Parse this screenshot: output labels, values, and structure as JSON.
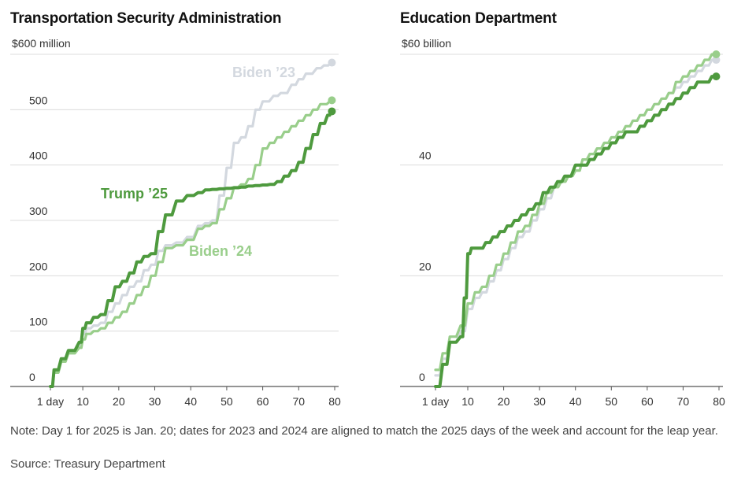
{
  "chart_data": [
    {
      "type": "line",
      "title": "Transportation Security Administration",
      "y_unit_label": "$600 million",
      "yticks": [
        0,
        100,
        200,
        300,
        400,
        500
      ],
      "ylim": [
        0,
        600
      ],
      "xlim": [
        1,
        80
      ],
      "xticks": [
        1,
        10,
        20,
        30,
        40,
        50,
        60,
        70,
        80
      ],
      "xtick_labels": [
        "1 day",
        "10",
        "20",
        "30",
        "40",
        "50",
        "60",
        "70",
        "80"
      ],
      "grid": true,
      "series": [
        {
          "name": "Biden ’23",
          "color": "#d3d8df",
          "points": [
            [
              1,
              0
            ],
            [
              2,
              25
            ],
            [
              4,
              45
            ],
            [
              6,
              60
            ],
            [
              9,
              75
            ],
            [
              10,
              95
            ],
            [
              11,
              105
            ],
            [
              13,
              110
            ],
            [
              15,
              115
            ],
            [
              17,
              135
            ],
            [
              19,
              150
            ],
            [
              21,
              165
            ],
            [
              23,
              180
            ],
            [
              25,
              190
            ],
            [
              27,
              210
            ],
            [
              29,
              220
            ],
            [
              31,
              245
            ],
            [
              33,
              255
            ],
            [
              36,
              260
            ],
            [
              39,
              270
            ],
            [
              42,
              290
            ],
            [
              44,
              295
            ],
            [
              46,
              300
            ],
            [
              48,
              345
            ],
            [
              50,
              395
            ],
            [
              52,
              440
            ],
            [
              54,
              450
            ],
            [
              56,
              470
            ],
            [
              58,
              500
            ],
            [
              60,
              515
            ],
            [
              63,
              525
            ],
            [
              65,
              530
            ],
            [
              68,
              545
            ],
            [
              70,
              555
            ],
            [
              72,
              565
            ],
            [
              75,
              575
            ],
            [
              77,
              580
            ],
            [
              79,
              585
            ]
          ]
        },
        {
          "name": "Biden ’24",
          "color": "#99ce8b",
          "points": [
            [
              1,
              0
            ],
            [
              2,
              25
            ],
            [
              4,
              45
            ],
            [
              6,
              60
            ],
            [
              9,
              70
            ],
            [
              10,
              85
            ],
            [
              11,
              95
            ],
            [
              13,
              100
            ],
            [
              15,
              105
            ],
            [
              17,
              115
            ],
            [
              19,
              125
            ],
            [
              21,
              135
            ],
            [
              23,
              150
            ],
            [
              25,
              165
            ],
            [
              27,
              180
            ],
            [
              29,
              200
            ],
            [
              31,
              225
            ],
            [
              33,
              250
            ],
            [
              36,
              255
            ],
            [
              39,
              265
            ],
            [
              42,
              285
            ],
            [
              44,
              290
            ],
            [
              46,
              295
            ],
            [
              48,
              320
            ],
            [
              50,
              340
            ],
            [
              52,
              360
            ],
            [
              54,
              365
            ],
            [
              56,
              375
            ],
            [
              58,
              400
            ],
            [
              60,
              430
            ],
            [
              62,
              440
            ],
            [
              64,
              450
            ],
            [
              66,
              460
            ],
            [
              68,
              470
            ],
            [
              70,
              480
            ],
            [
              72,
              490
            ],
            [
              74,
              500
            ],
            [
              76,
              510
            ],
            [
              79,
              517
            ]
          ]
        },
        {
          "name": "Trump ’25",
          "color": "#4e9a3e",
          "points": [
            [
              1,
              0
            ],
            [
              2,
              30
            ],
            [
              4,
              50
            ],
            [
              6,
              65
            ],
            [
              9,
              80
            ],
            [
              10,
              105
            ],
            [
              11,
              115
            ],
            [
              13,
              125
            ],
            [
              15,
              130
            ],
            [
              17,
              155
            ],
            [
              19,
              180
            ],
            [
              21,
              190
            ],
            [
              23,
              205
            ],
            [
              25,
              225
            ],
            [
              27,
              235
            ],
            [
              29,
              240
            ],
            [
              31,
              280
            ],
            [
              33,
              310
            ],
            [
              36,
              335
            ],
            [
              39,
              345
            ],
            [
              42,
              350
            ],
            [
              44,
              355
            ],
            [
              46,
              356
            ],
            [
              48,
              357
            ],
            [
              50,
              358
            ],
            [
              52,
              359
            ],
            [
              54,
              360
            ],
            [
              56,
              362
            ],
            [
              58,
              363
            ],
            [
              60,
              364
            ],
            [
              62,
              365
            ],
            [
              64,
              370
            ],
            [
              66,
              380
            ],
            [
              68,
              390
            ],
            [
              70,
              405
            ],
            [
              72,
              430
            ],
            [
              74,
              455
            ],
            [
              76,
              475
            ],
            [
              78,
              490
            ],
            [
              79,
              497
            ]
          ]
        }
      ],
      "annotations": [
        "Biden ’23",
        "Trump ’25",
        "Biden ’24"
      ]
    },
    {
      "type": "line",
      "title": "Education Department",
      "y_unit_label": "$60 billion",
      "yticks": [
        0,
        20,
        40
      ],
      "ylim": [
        0,
        60
      ],
      "xlim": [
        1,
        80
      ],
      "xticks": [
        1,
        10,
        20,
        30,
        40,
        50,
        60,
        70,
        80
      ],
      "xtick_labels": [
        "1 day",
        "10",
        "20",
        "30",
        "40",
        "50",
        "60",
        "70",
        "80"
      ],
      "grid": true,
      "series": [
        {
          "name": "Biden ’23",
          "color": "#d3d8df",
          "points": [
            [
              1,
              2
            ],
            [
              3,
              5
            ],
            [
              5,
              8
            ],
            [
              8,
              10
            ],
            [
              10,
              14
            ],
            [
              12,
              16
            ],
            [
              14,
              17
            ],
            [
              16,
              19
            ],
            [
              18,
              21
            ],
            [
              20,
              23
            ],
            [
              22,
              25
            ],
            [
              24,
              27
            ],
            [
              26,
              28
            ],
            [
              28,
              30
            ],
            [
              30,
              32
            ],
            [
              32,
              34
            ],
            [
              34,
              36
            ],
            [
              36,
              37
            ],
            [
              38,
              38
            ],
            [
              40,
              39
            ],
            [
              42,
              41
            ],
            [
              44,
              42
            ],
            [
              46,
              43
            ],
            [
              48,
              44
            ],
            [
              50,
              45
            ],
            [
              52,
              46
            ],
            [
              54,
              47
            ],
            [
              56,
              48
            ],
            [
              58,
              49
            ],
            [
              60,
              50
            ],
            [
              62,
              51
            ],
            [
              64,
              52
            ],
            [
              66,
              53
            ],
            [
              68,
              54
            ],
            [
              70,
              55
            ],
            [
              72,
              56
            ],
            [
              74,
              57
            ],
            [
              76,
              58
            ],
            [
              78,
              59
            ],
            [
              79,
              59
            ]
          ]
        },
        {
          "name": "Biden ’24",
          "color": "#99ce8b",
          "points": [
            [
              1,
              3
            ],
            [
              3,
              6
            ],
            [
              5,
              9
            ],
            [
              8,
              11
            ],
            [
              10,
              15
            ],
            [
              12,
              17
            ],
            [
              14,
              18
            ],
            [
              16,
              20
            ],
            [
              18,
              22
            ],
            [
              20,
              24
            ],
            [
              22,
              26
            ],
            [
              24,
              28
            ],
            [
              26,
              29
            ],
            [
              28,
              31
            ],
            [
              30,
              33
            ],
            [
              32,
              35
            ],
            [
              34,
              36
            ],
            [
              36,
              37
            ],
            [
              38,
              38
            ],
            [
              40,
              39
            ],
            [
              42,
              41
            ],
            [
              44,
              42
            ],
            [
              46,
              43
            ],
            [
              48,
              44
            ],
            [
              50,
              45
            ],
            [
              52,
              46
            ],
            [
              54,
              47
            ],
            [
              56,
              48
            ],
            [
              58,
              49
            ],
            [
              60,
              50
            ],
            [
              62,
              51
            ],
            [
              64,
              52
            ],
            [
              66,
              53
            ],
            [
              68,
              55
            ],
            [
              70,
              56
            ],
            [
              72,
              57
            ],
            [
              74,
              58
            ],
            [
              76,
              59
            ],
            [
              78,
              60
            ],
            [
              79,
              60
            ]
          ]
        },
        {
          "name": "Trump ’25",
          "color": "#4e9a3e",
          "points": [
            [
              1,
              0
            ],
            [
              3,
              4
            ],
            [
              5,
              8
            ],
            [
              8,
              9
            ],
            [
              9,
              16
            ],
            [
              10,
              24
            ],
            [
              11,
              25
            ],
            [
              13,
              25
            ],
            [
              15,
              26
            ],
            [
              17,
              27
            ],
            [
              19,
              28
            ],
            [
              21,
              29
            ],
            [
              23,
              30
            ],
            [
              25,
              31
            ],
            [
              27,
              32
            ],
            [
              29,
              33
            ],
            [
              31,
              35
            ],
            [
              33,
              36
            ],
            [
              35,
              37
            ],
            [
              37,
              38
            ],
            [
              40,
              40
            ],
            [
              42,
              40
            ],
            [
              44,
              41
            ],
            [
              46,
              42
            ],
            [
              48,
              43
            ],
            [
              50,
              44
            ],
            [
              52,
              45
            ],
            [
              54,
              46
            ],
            [
              56,
              46
            ],
            [
              58,
              47
            ],
            [
              60,
              48
            ],
            [
              62,
              49
            ],
            [
              64,
              50
            ],
            [
              66,
              51
            ],
            [
              68,
              52
            ],
            [
              70,
              53
            ],
            [
              72,
              54
            ],
            [
              74,
              55
            ],
            [
              76,
              55
            ],
            [
              78,
              56
            ],
            [
              79,
              56
            ]
          ]
        }
      ],
      "annotations": []
    }
  ],
  "footer": {
    "note": "Note: Day 1 for 2025 is Jan. 20; dates for 2023 and 2024 are aligned to match the 2025 days of the week and account for the leap year.",
    "source": "Source: Treasury Department"
  }
}
